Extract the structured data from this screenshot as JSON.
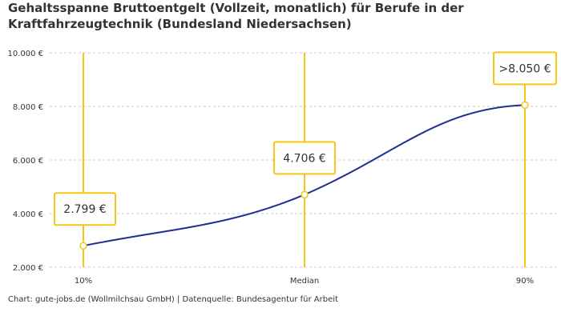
{
  "title": "Gehaltsspanne Bruttoentgelt (Vollzeit, monatlich) für Berufe in der Kraftfahrzeugtechnik (Bundesland Niedersachsen)",
  "caption": "Chart: gute-jobs.de (Wollmilchsau GmbH) | Datenquelle: Bundesagentur für Arbeit",
  "colors": {
    "line": "#1f2f8f",
    "accent": "#f5c518",
    "grid": "#cccccc",
    "text": "#333333"
  },
  "chart_data": {
    "type": "line",
    "categories": [
      "10%",
      "Median",
      "90%"
    ],
    "values": [
      2799,
      4706,
      8050
    ],
    "value_labels": [
      "2.799 €",
      "4.706 €",
      ">8.050 €"
    ],
    "y_ticks": [
      2000,
      4000,
      6000,
      8000,
      10000
    ],
    "y_tick_labels": [
      "2.000 €",
      "4.000 €",
      "6.000 €",
      "8.000 €",
      "10.000 €"
    ],
    "ylim": [
      2000,
      10000
    ],
    "grid": true,
    "xlabel": "",
    "ylabel": ""
  }
}
